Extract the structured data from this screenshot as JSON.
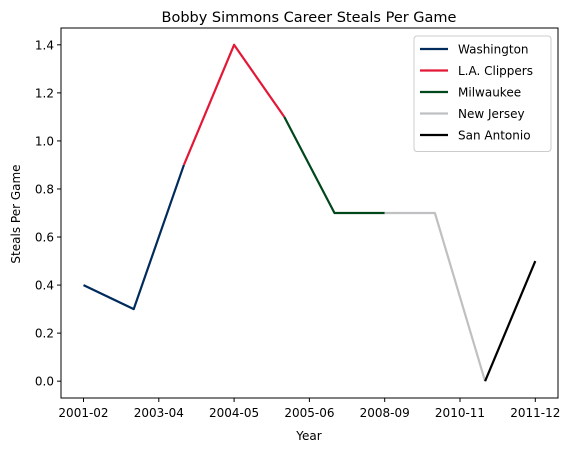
{
  "chart_data": {
    "type": "line",
    "title": "Bobby Simmons Career Steals Per Game",
    "xlabel": "Year",
    "ylabel": "Steals Per Game",
    "x_ticks": [
      "2001-02",
      "2003-04",
      "2004-05",
      "2005-06",
      "2008-09",
      "2010-11",
      "2011-12"
    ],
    "y_ticks": [
      "0.0",
      "0.2",
      "0.4",
      "0.6",
      "0.8",
      "1.0",
      "1.2",
      "1.4"
    ],
    "ylim": [
      -0.07,
      1.47
    ],
    "grid": false,
    "legend_position": "top-right",
    "series": [
      {
        "name": "Washington",
        "color": "#002B5C",
        "points": [
          [
            0,
            0.4
          ],
          [
            1,
            0.3
          ],
          [
            2,
            0.9
          ]
        ]
      },
      {
        "name": "L.A. Clippers",
        "color": "#E31837",
        "points": [
          [
            2,
            0.9
          ],
          [
            3,
            1.4
          ],
          [
            4,
            1.1
          ]
        ]
      },
      {
        "name": "Milwaukee",
        "color": "#00471B",
        "points": [
          [
            4,
            1.1
          ],
          [
            5,
            0.7
          ],
          [
            6,
            0.7
          ]
        ]
      },
      {
        "name": "New Jersey",
        "color": "#BEC0C2",
        "points": [
          [
            6,
            0.7
          ],
          [
            7,
            0.7
          ],
          [
            8,
            0.0
          ]
        ]
      },
      {
        "name": "San Antonio",
        "color": "#000000",
        "points": [
          [
            8,
            0.0
          ],
          [
            9,
            0.5
          ]
        ]
      }
    ]
  }
}
